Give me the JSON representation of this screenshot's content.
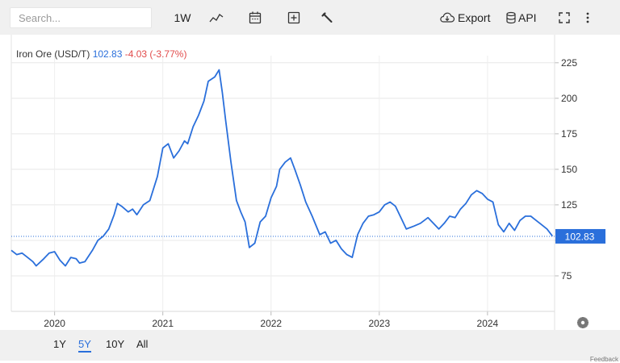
{
  "toolbar": {
    "search_placeholder": "Search...",
    "interval_label": "1W",
    "export_label": "Export",
    "api_label": "API",
    "icons": [
      "line-chart-icon",
      "calendar-icon",
      "add-box-icon",
      "wrench-icon",
      "cloud-download-icon",
      "database-icon",
      "fullscreen-icon",
      "more-vertical-icon"
    ]
  },
  "legend": {
    "name": "Iron Ore (USD/T)",
    "last": "102.83",
    "change": "-4.03 (-3.77%)"
  },
  "range": {
    "buttons": [
      "1Y",
      "5Y",
      "10Y",
      "All"
    ],
    "active": "5Y"
  },
  "feedback_label": "Feedback",
  "colors": {
    "line": "#2a6fdb",
    "change_negative": "#e24b4b",
    "last_badge": "#2a6fdb"
  },
  "chart_data": {
    "type": "line",
    "title": "Iron Ore (USD/T)",
    "last_value_label": "102.83",
    "x_ticks": [
      "2020",
      "2021",
      "2022",
      "2023",
      "2024"
    ],
    "y_ticks": [
      75,
      100,
      125,
      150,
      175,
      200,
      225
    ],
    "y_tick_labels": [
      "75",
      "",
      "125",
      "150",
      "175",
      "200",
      "225"
    ],
    "ylim": [
      50,
      230
    ],
    "xlim": [
      2019.6,
      2024.62
    ],
    "grid": true,
    "series": [
      {
        "x": [
          2019.6,
          2019.65,
          2019.7,
          2019.75,
          2019.8,
          2019.83,
          2019.9,
          2019.95,
          2020.0,
          2020.05,
          2020.1,
          2020.15,
          2020.2,
          2020.23,
          2020.28,
          2020.35,
          2020.4,
          2020.45,
          2020.5,
          2020.55,
          2020.58,
          2020.62,
          2020.68,
          2020.72,
          2020.76,
          2020.82,
          2020.88,
          2020.95,
          2021.0,
          2021.05,
          2021.1,
          2021.15,
          2021.2,
          2021.23,
          2021.28,
          2021.33,
          2021.38,
          2021.42,
          2021.48,
          2021.52,
          2021.55,
          2021.58,
          2021.63,
          2021.68,
          2021.72,
          2021.76,
          2021.8,
          2021.85,
          2021.9,
          2021.95,
          2022.0,
          2022.05,
          2022.08,
          2022.13,
          2022.18,
          2022.22,
          2022.27,
          2022.32,
          2022.38,
          2022.45,
          2022.5,
          2022.55,
          2022.6,
          2022.65,
          2022.7,
          2022.75,
          2022.8,
          2022.85,
          2022.9,
          2022.95,
          2023.0,
          2023.05,
          2023.1,
          2023.15,
          2023.2,
          2023.25,
          2023.32,
          2023.38,
          2023.45,
          2023.5,
          2023.55,
          2023.6,
          2023.65,
          2023.7,
          2023.75,
          2023.8,
          2023.85,
          2023.9,
          2023.95,
          2024.0,
          2024.05,
          2024.1,
          2024.15,
          2024.2,
          2024.25,
          2024.3,
          2024.35,
          2024.4,
          2024.45,
          2024.5,
          2024.55,
          2024.6
        ],
        "values": [
          93,
          90,
          91,
          88,
          85,
          82,
          87,
          91,
          92,
          86,
          82,
          88,
          87,
          84,
          85,
          93,
          100,
          103,
          108,
          118,
          126,
          124,
          120,
          122,
          118,
          125,
          128,
          145,
          165,
          168,
          158,
          163,
          170,
          168,
          180,
          188,
          198,
          212,
          215,
          220,
          204,
          185,
          155,
          128,
          120,
          113,
          95,
          98,
          113,
          117,
          130,
          138,
          150,
          155,
          158,
          150,
          139,
          127,
          117,
          104,
          106,
          98,
          100,
          94,
          90,
          88,
          104,
          112,
          117,
          118,
          120,
          125,
          127,
          124,
          116,
          108,
          110,
          112,
          116,
          112,
          108,
          112,
          117,
          116,
          122,
          126,
          132,
          135,
          133,
          129,
          127,
          111,
          106,
          112,
          107,
          114,
          117,
          117,
          114,
          111,
          108,
          103
        ]
      }
    ]
  }
}
